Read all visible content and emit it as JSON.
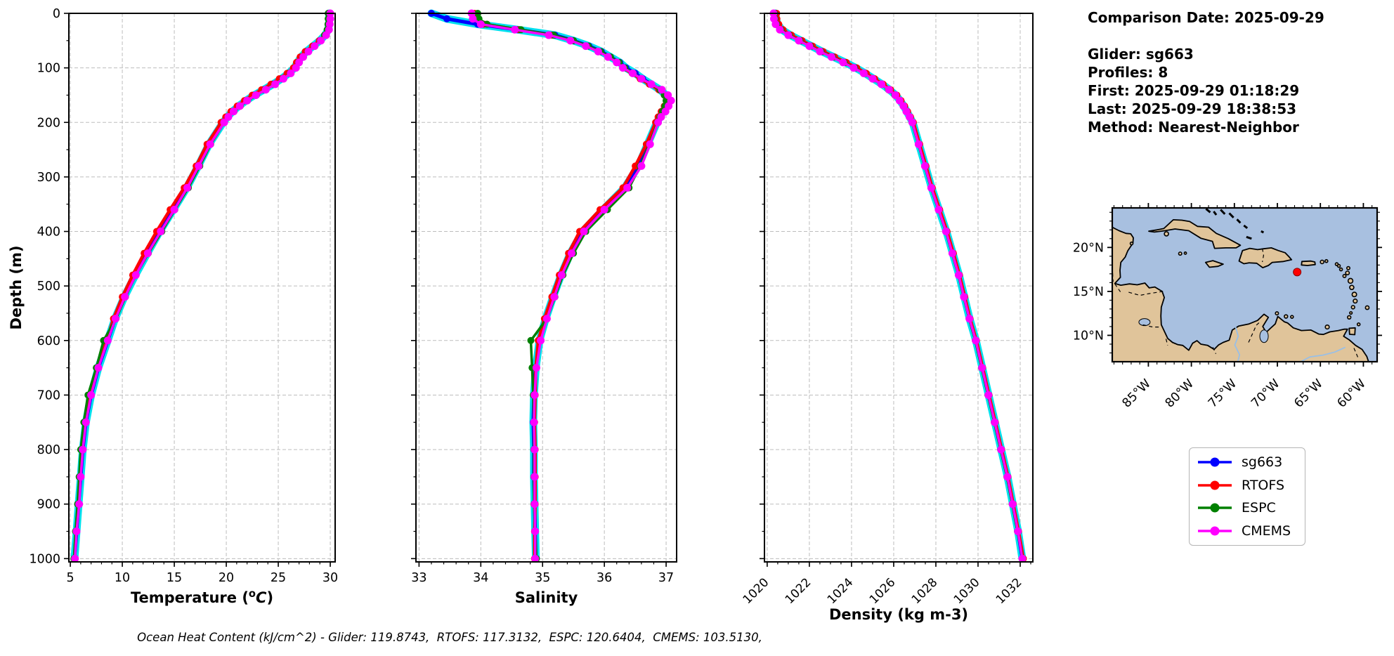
{
  "info_panel": {
    "comparison_date": "Comparison Date: 2025-09-29",
    "glider": "Glider: sg663",
    "profiles": "Profiles: 8",
    "first": "First: 2025-09-29 01:18:29",
    "last": "Last: 2025-09-29 18:38:53",
    "method": "Method: Nearest-Neighbor"
  },
  "legend": {
    "entries": [
      {
        "label": "sg663",
        "color": "#0000ff"
      },
      {
        "label": "RTOFS",
        "color": "#ff0000"
      },
      {
        "label": "ESPC",
        "color": "#008000"
      },
      {
        "label": "CMEMS",
        "color": "#ff00ff"
      }
    ]
  },
  "footer": {
    "text": "Ocean Heat Content (kJ/cm^2) - Glider: 119.8743,  RTOFS: 117.3132,  ESPC: 120.6404,  CMEMS: 103.5130,"
  },
  "chart_data": {
    "type": "line",
    "ylabel": "Depth (m)",
    "ylim": [
      0,
      1006
    ],
    "yticks": [
      0,
      100,
      200,
      300,
      400,
      500,
      600,
      700,
      800,
      900,
      1000
    ],
    "grid": true,
    "glider_envelope_color": "#00e0ee",
    "depths": [
      0,
      10,
      20,
      30,
      40,
      50,
      60,
      70,
      80,
      90,
      100,
      110,
      120,
      130,
      140,
      150,
      160,
      170,
      180,
      190,
      200,
      240,
      280,
      320,
      360,
      400,
      440,
      480,
      520,
      560,
      600,
      650,
      700,
      750,
      800,
      850,
      900,
      950,
      1000
    ],
    "charts": [
      {
        "id": "temperature",
        "xlabel": "Temperature (°C)",
        "xlabel_parts": [
          {
            "t": "Temperature ("
          },
          {
            "t": "o",
            "sup": true
          },
          {
            "t": "C",
            "italic": true
          },
          {
            "t": ")"
          }
        ],
        "xlim": [
          4.86,
          30.47
        ],
        "xticks": [
          5,
          10,
          15,
          20,
          25,
          30
        ],
        "xminor": 1,
        "rotate_xticks": false,
        "series": [
          {
            "name": "sg663",
            "color": "#0000ff",
            "envelope": true,
            "values": [
              29.9,
              29.9,
              29.88,
              29.8,
              29.5,
              29.0,
              28.35,
              27.7,
              27.2,
              26.85,
              26.55,
              26.0,
              25.3,
              24.5,
              23.6,
              22.7,
              21.9,
              21.2,
              20.6,
              20.1,
              19.7,
              18.35,
              17.3,
              16.2,
              14.9,
              13.6,
              12.4,
              11.25,
              10.2,
              9.3,
              8.6,
              7.7,
              7.0,
              6.5,
              6.2,
              6.0,
              5.8,
              5.6,
              5.4
            ]
          },
          {
            "name": "RTOFS",
            "color": "#ff0000",
            "values": [
              29.85,
              29.85,
              29.8,
              29.72,
              29.45,
              28.95,
              28.3,
              27.6,
              27.1,
              26.75,
              26.45,
              25.85,
              25.1,
              24.3,
              23.4,
              22.5,
              21.75,
              21.05,
              20.45,
              19.95,
              19.5,
              18.15,
              17.1,
              15.95,
              14.6,
              13.3,
              12.1,
              11.0,
              10.0,
              9.15,
              8.5,
              7.6,
              6.9,
              6.4,
              6.1,
              5.9,
              5.75,
              5.55,
              5.4
            ]
          },
          {
            "name": "ESPC",
            "color": "#008000",
            "values": [
              29.8,
              29.8,
              29.78,
              29.7,
              29.45,
              29.05,
              28.45,
              27.85,
              27.35,
              26.95,
              26.7,
              26.15,
              25.45,
              24.65,
              23.75,
              22.9,
              22.05,
              21.35,
              20.75,
              20.2,
              19.8,
              18.5,
              17.45,
              16.35,
              15.05,
              13.8,
              12.5,
              11.3,
              10.3,
              9.4,
              8.2,
              7.5,
              6.7,
              6.3,
              6.0,
              5.85,
              5.7,
              5.5,
              5.35
            ]
          },
          {
            "name": "CMEMS",
            "color": "#ff00ff",
            "values": [
              30.0,
              30.0,
              29.95,
              29.88,
              29.6,
              29.1,
              28.5,
              27.9,
              27.4,
              27.0,
              26.7,
              26.2,
              25.5,
              24.7,
              23.8,
              22.85,
              22.0,
              21.3,
              20.7,
              20.2,
              19.8,
              18.45,
              17.35,
              16.25,
              15.0,
              13.7,
              12.45,
              11.3,
              10.25,
              9.35,
              8.6,
              7.7,
              7.0,
              6.5,
              6.2,
              6.0,
              5.85,
              5.6,
              5.45
            ]
          }
        ]
      },
      {
        "id": "salinity",
        "xlabel": "Salinity",
        "xlim": [
          32.95,
          37.17
        ],
        "xticks": [
          33,
          34,
          35,
          36,
          37
        ],
        "xminor": 0.2,
        "rotate_xticks": false,
        "series": [
          {
            "name": "sg663",
            "color": "#0000ff",
            "envelope": true,
            "values": [
              33.2,
              33.45,
              33.95,
              34.6,
              35.2,
              35.5,
              35.75,
              35.95,
              36.1,
              36.25,
              36.35,
              36.5,
              36.62,
              36.76,
              36.9,
              37.0,
              37.03,
              37.0,
              36.95,
              36.9,
              36.85,
              36.7,
              36.55,
              36.33,
              35.98,
              35.65,
              35.45,
              35.3,
              35.17,
              35.05,
              34.95,
              34.89,
              34.86,
              34.85,
              34.86,
              34.86,
              34.87,
              34.88,
              34.89
            ]
          },
          {
            "name": "RTOFS",
            "color": "#ff0000",
            "values": [
              33.9,
              33.92,
              34.05,
              34.62,
              35.15,
              35.48,
              35.72,
              35.92,
              36.08,
              36.22,
              36.3,
              36.45,
              36.58,
              36.73,
              36.88,
              36.98,
              37.0,
              36.97,
              36.92,
              36.87,
              36.83,
              36.68,
              36.5,
              36.3,
              35.93,
              35.6,
              35.42,
              35.27,
              35.15,
              35.03,
              34.93,
              34.89,
              34.88,
              34.87,
              34.88,
              34.88,
              34.88,
              34.87,
              34.87
            ]
          },
          {
            "name": "ESPC",
            "color": "#008000",
            "values": [
              33.95,
              33.97,
              34.1,
              34.65,
              35.18,
              35.5,
              35.74,
              35.94,
              36.1,
              36.24,
              36.33,
              36.47,
              36.6,
              36.75,
              36.9,
              36.97,
              37.0,
              36.98,
              36.94,
              36.9,
              36.86,
              36.73,
              36.58,
              36.4,
              36.05,
              35.7,
              35.5,
              35.33,
              35.2,
              35.07,
              34.81,
              34.83,
              34.85,
              34.86,
              34.86,
              34.86,
              34.86,
              34.88,
              34.9
            ]
          },
          {
            "name": "CMEMS",
            "color": "#ff00ff",
            "values": [
              33.85,
              33.87,
              34.0,
              34.55,
              35.1,
              35.45,
              35.7,
              35.9,
              36.06,
              36.2,
              36.3,
              36.46,
              36.6,
              36.76,
              36.93,
              37.03,
              37.08,
              37.04,
              36.99,
              36.92,
              36.87,
              36.74,
              36.6,
              36.37,
              36.0,
              35.67,
              35.47,
              35.31,
              35.19,
              35.07,
              34.97,
              34.9,
              34.87,
              34.86,
              34.87,
              34.87,
              34.87,
              34.88,
              34.88
            ]
          }
        ]
      },
      {
        "id": "density",
        "xlabel": "Density (kg m-3)",
        "xlim": [
          1019.87,
          1032.6
        ],
        "xticks": [
          1020,
          1022,
          1024,
          1026,
          1028,
          1030,
          1032
        ],
        "xminor": 0.5,
        "rotate_xticks": true,
        "series": [
          {
            "name": "sg663",
            "color": "#0000ff",
            "envelope": true,
            "values": [
              1020.4,
              1020.42,
              1020.5,
              1020.7,
              1021.1,
              1021.6,
              1022.1,
              1022.6,
              1023.15,
              1023.7,
              1024.2,
              1024.65,
              1025.05,
              1025.45,
              1025.8,
              1026.1,
              1026.3,
              1026.48,
              1026.62,
              1026.76,
              1026.9,
              1027.2,
              1027.5,
              1027.8,
              1028.15,
              1028.5,
              1028.8,
              1029.1,
              1029.35,
              1029.6,
              1029.9,
              1030.2,
              1030.5,
              1030.8,
              1031.1,
              1031.4,
              1031.65,
              1031.9,
              1032.1
            ]
          },
          {
            "name": "RTOFS",
            "color": "#ff0000",
            "values": [
              1020.45,
              1020.46,
              1020.55,
              1020.75,
              1021.15,
              1021.65,
              1022.15,
              1022.65,
              1023.2,
              1023.75,
              1024.25,
              1024.7,
              1025.1,
              1025.5,
              1025.85,
              1026.15,
              1026.35,
              1026.52,
              1026.66,
              1026.8,
              1026.93,
              1027.23,
              1027.53,
              1027.83,
              1028.18,
              1028.53,
              1028.83,
              1029.12,
              1029.37,
              1029.62,
              1029.92,
              1030.22,
              1030.52,
              1030.82,
              1031.12,
              1031.42,
              1031.67,
              1031.92,
              1032.15
            ]
          },
          {
            "name": "ESPC",
            "color": "#008000",
            "values": [
              1020.35,
              1020.37,
              1020.45,
              1020.65,
              1021.05,
              1021.55,
              1022.05,
              1022.55,
              1023.1,
              1023.65,
              1024.15,
              1024.6,
              1025.0,
              1025.4,
              1025.75,
              1026.05,
              1026.27,
              1026.45,
              1026.6,
              1026.74,
              1026.87,
              1027.17,
              1027.47,
              1027.77,
              1028.12,
              1028.47,
              1028.77,
              1029.07,
              1029.32,
              1029.58,
              1029.87,
              1030.17,
              1030.47,
              1030.77,
              1031.07,
              1031.37,
              1031.62,
              1031.87,
              1032.12
            ]
          },
          {
            "name": "CMEMS",
            "color": "#ff00ff",
            "values": [
              1020.3,
              1020.32,
              1020.4,
              1020.6,
              1021.0,
              1021.5,
              1022.0,
              1022.5,
              1023.05,
              1023.6,
              1024.1,
              1024.58,
              1025.0,
              1025.42,
              1025.78,
              1026.08,
              1026.28,
              1026.46,
              1026.6,
              1026.75,
              1026.88,
              1027.18,
              1027.48,
              1027.78,
              1028.13,
              1028.48,
              1028.78,
              1029.08,
              1029.33,
              1029.59,
              1029.89,
              1030.19,
              1030.49,
              1030.79,
              1031.09,
              1031.39,
              1031.64,
              1031.89,
              1032.1
            ]
          }
        ]
      }
    ]
  },
  "map": {
    "extent": {
      "lon": [
        -89.2,
        -58.4
      ],
      "lat": [
        7.0,
        24.5
      ]
    },
    "lon_ticks": [
      {
        "v": -85,
        "label": "85°W"
      },
      {
        "v": -80,
        "label": "80°W"
      },
      {
        "v": -75,
        "label": "75°W"
      },
      {
        "v": -70,
        "label": "70°W"
      },
      {
        "v": -65,
        "label": "65°W"
      },
      {
        "v": -60,
        "label": "60°W"
      }
    ],
    "lat_ticks": [
      {
        "v": 20,
        "label": "20°N"
      },
      {
        "v": 15,
        "label": "15°N"
      },
      {
        "v": 10,
        "label": "10°N"
      }
    ],
    "marker": {
      "lon": -67.7,
      "lat": 17.2,
      "color": "#ff0000"
    },
    "ocean_color": "#a8c0e0",
    "land_color": "#e0c49a",
    "river_color": "#99bfe6"
  }
}
